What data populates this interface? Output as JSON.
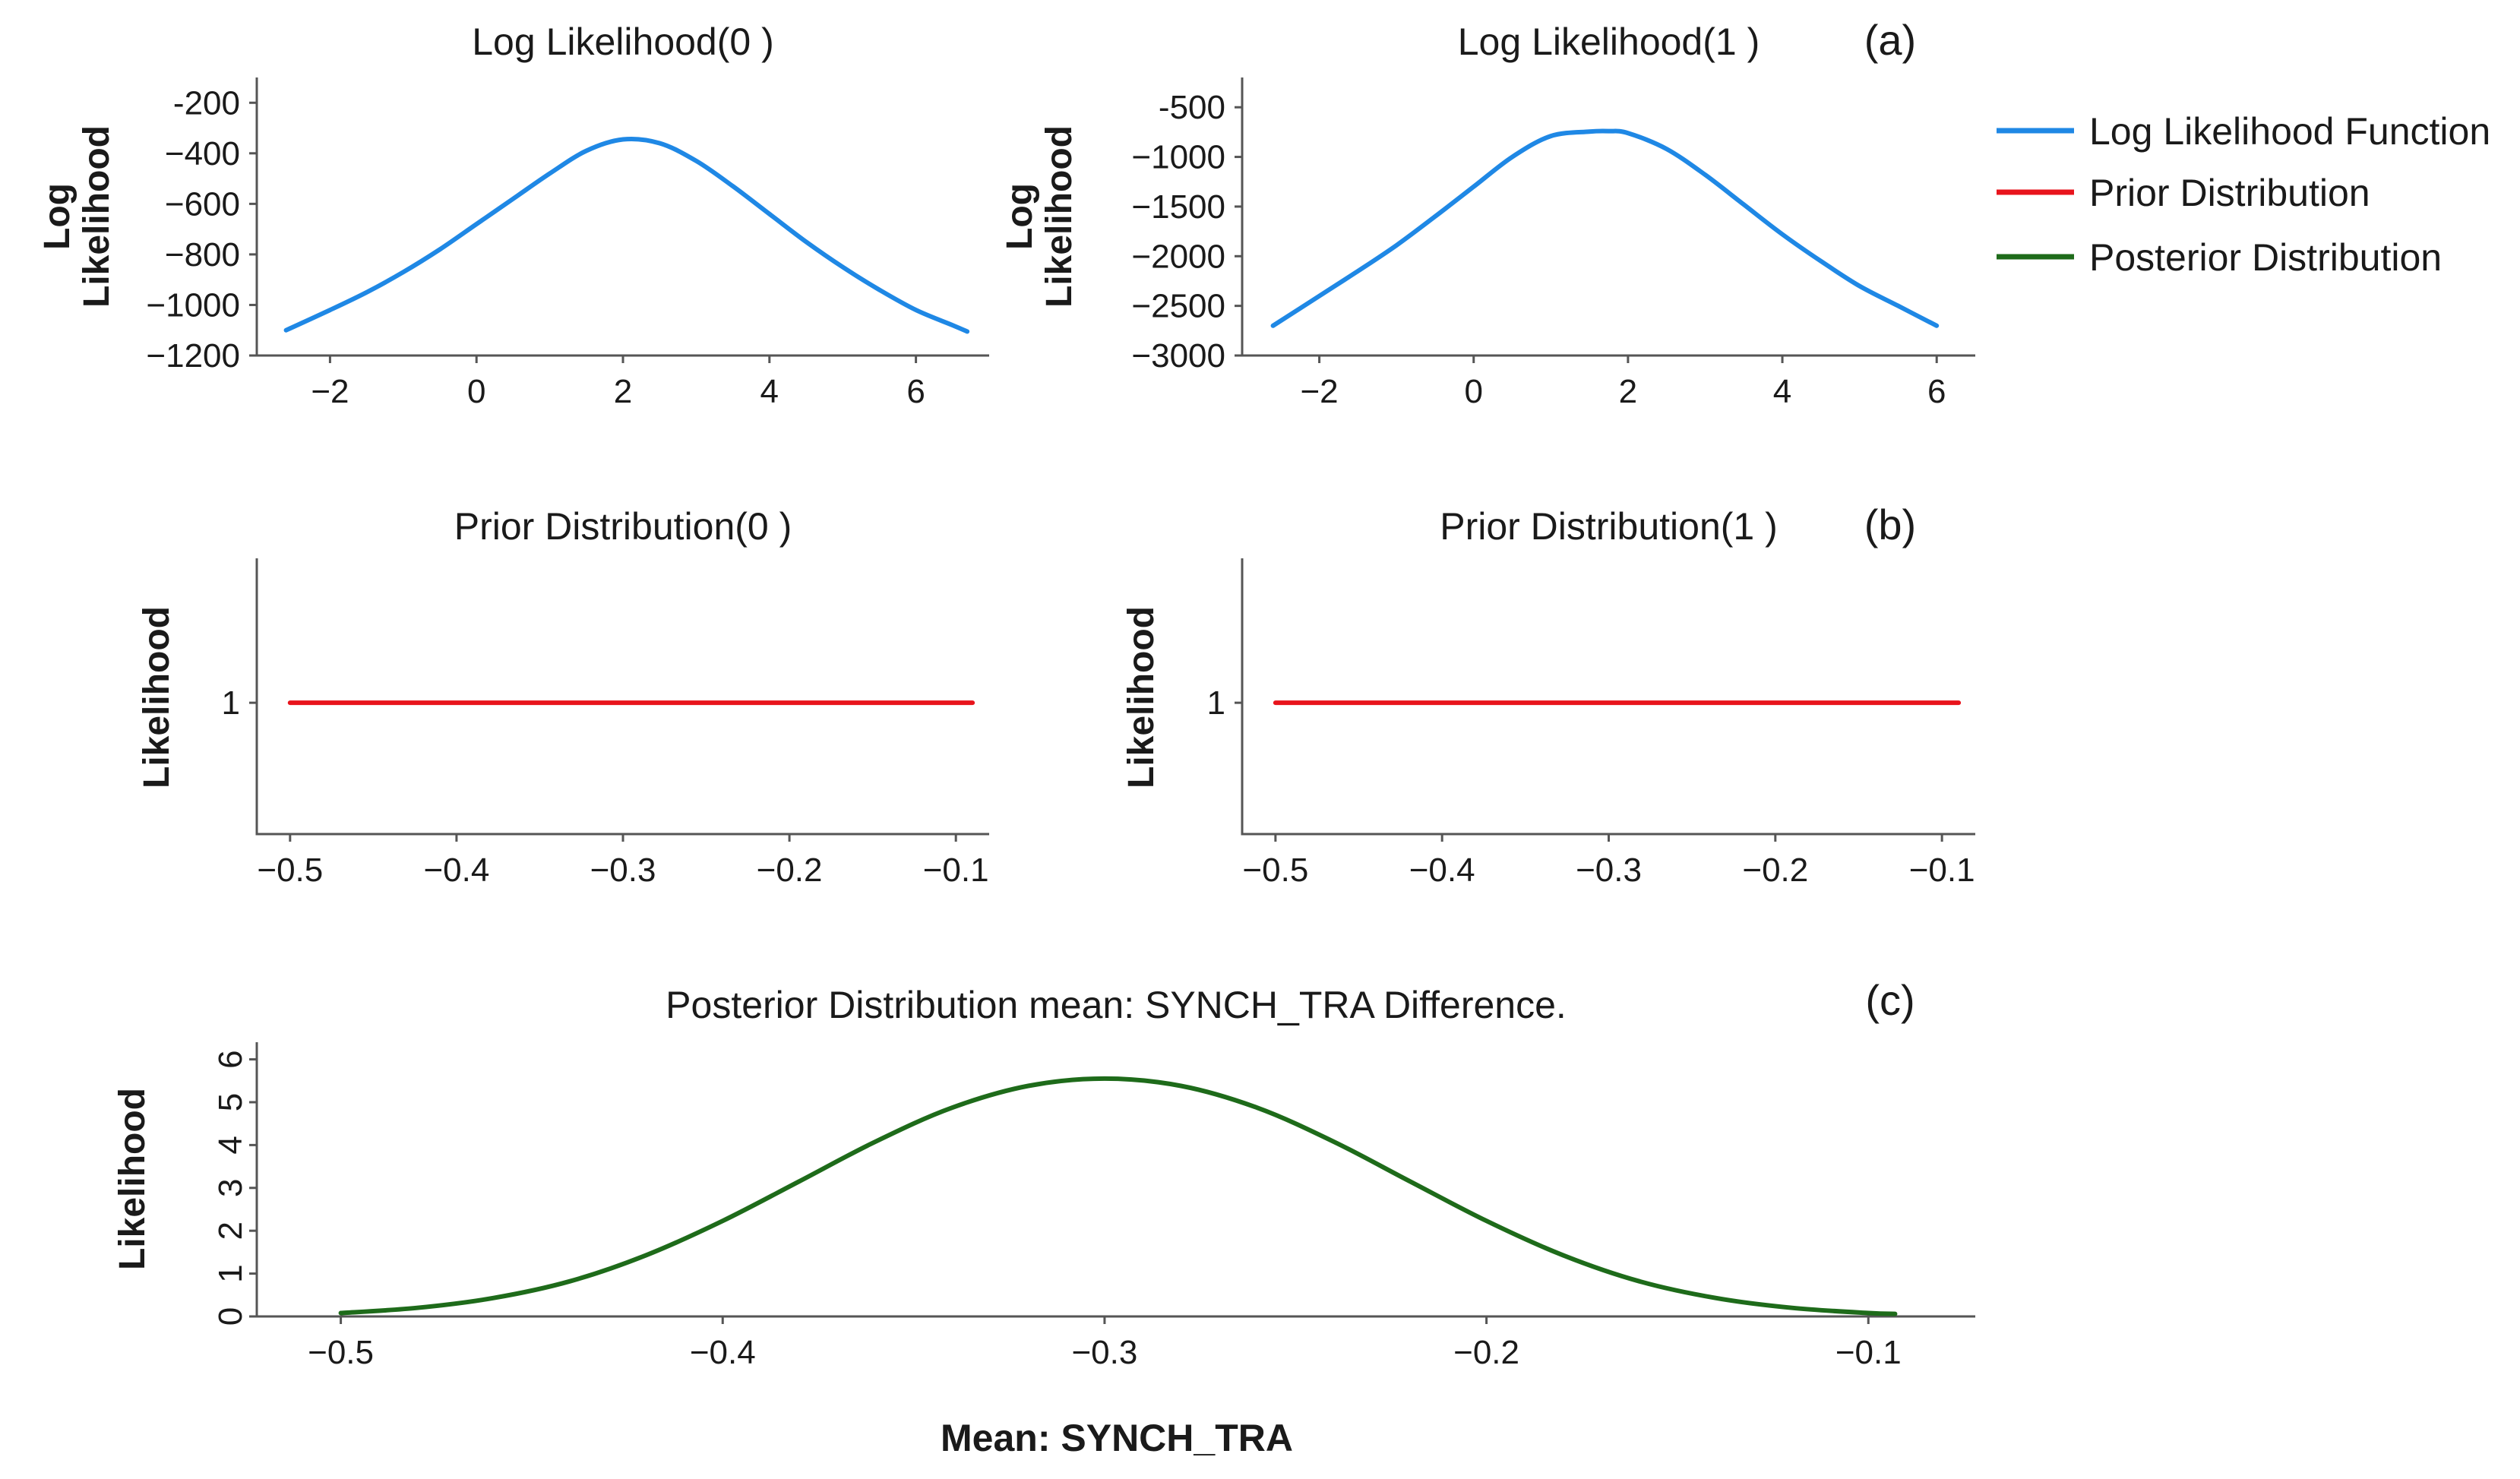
{
  "panel_labels": {
    "a": "(a)",
    "b": "(b)",
    "c": "(c)"
  },
  "legend": {
    "items": [
      {
        "label": "Log Likelihood Function",
        "color": "#1f88e5"
      },
      {
        "label": "Prior Distribution",
        "color": "#e8141c"
      },
      {
        "label": "Posterior Distribution",
        "color": "#1e6b1a"
      }
    ]
  },
  "xlabel_bottom": "Mean: SYNCH_TRA",
  "chart_data": [
    {
      "id": "loglik0",
      "type": "line",
      "title": "Log Likelihood(0 )",
      "ylabel_lines": [
        "Log",
        "Likelihood"
      ],
      "xlabel": "",
      "xlim": [
        -3.0,
        7.0
      ],
      "ylim": [
        -1200,
        -100
      ],
      "xticks": [
        -2,
        0,
        2,
        4,
        6
      ],
      "xtick_labels": [
        "−2",
        "0",
        "2",
        "4",
        "6"
      ],
      "yticks": [
        -200,
        -400,
        -600,
        -800,
        -1000,
        -1200
      ],
      "ytick_labels": [
        "-200",
        "−400",
        "−600",
        "−800",
        "−1000",
        "−1200"
      ],
      "color": "#1f88e5",
      "series": [
        {
          "name": "Log Likelihood Function",
          "x": [
            -2.6,
            -2.0,
            -1.5,
            -1.0,
            -0.5,
            0.0,
            0.5,
            1.0,
            1.5,
            2.0,
            2.5,
            3.0,
            3.5,
            4.0,
            4.5,
            5.0,
            5.5,
            6.0,
            6.5,
            6.7
          ],
          "y": [
            -1100,
            -1020,
            -950,
            -870,
            -780,
            -680,
            -580,
            -480,
            -390,
            -345,
            -360,
            -430,
            -530,
            -640,
            -750,
            -850,
            -940,
            -1020,
            -1080,
            -1105
          ]
        }
      ]
    },
    {
      "id": "loglik1",
      "type": "line",
      "title": "Log Likelihood(1 )",
      "ylabel_lines": [
        "Log",
        "Likelihood"
      ],
      "xlabel": "",
      "xlim": [
        -3.0,
        6.5
      ],
      "ylim": [
        -3000,
        -200
      ],
      "xticks": [
        -2,
        0,
        2,
        4,
        6
      ],
      "xtick_labels": [
        "−2",
        "0",
        "2",
        "4",
        "6"
      ],
      "yticks": [
        -500,
        -1000,
        -1500,
        -2000,
        -2500,
        -3000
      ],
      "ytick_labels": [
        "-500",
        "−1000",
        "−1500",
        "−2000",
        "−2500",
        "−3000"
      ],
      "color": "#1f88e5",
      "series": [
        {
          "name": "Log Likelihood Function",
          "x": [
            -2.6,
            -2.0,
            -1.5,
            -1.0,
            -0.5,
            0.0,
            0.5,
            1.0,
            1.5,
            1.75,
            2.0,
            2.5,
            3.0,
            3.5,
            4.0,
            4.5,
            5.0,
            5.5,
            6.0
          ],
          "y": [
            -2700,
            -2400,
            -2150,
            -1890,
            -1600,
            -1300,
            -1000,
            -790,
            -745,
            -740,
            -760,
            -920,
            -1180,
            -1480,
            -1780,
            -2050,
            -2300,
            -2500,
            -2700
          ]
        }
      ]
    },
    {
      "id": "prior0",
      "type": "line",
      "title": "Prior Distribution(0 )",
      "ylabel": "Likelihood",
      "xlabel": "",
      "xlim": [
        -0.52,
        -0.08
      ],
      "ylim": [
        0.5,
        1.55
      ],
      "xticks": [
        -0.5,
        -0.4,
        -0.3,
        -0.2,
        -0.1
      ],
      "xtick_labels": [
        "−0.5",
        "−0.4",
        "−0.3",
        "−0.2",
        "−0.1"
      ],
      "yticks": [
        1
      ],
      "ytick_labels": [
        "1"
      ],
      "color": "#e8141c",
      "series": [
        {
          "name": "Prior Distribution",
          "x": [
            -0.5,
            -0.09
          ],
          "y": [
            1,
            1
          ]
        }
      ]
    },
    {
      "id": "prior1",
      "type": "line",
      "title": "Prior Distribution(1 )",
      "ylabel": "Likelihood",
      "xlabel": "",
      "xlim": [
        -0.52,
        -0.08
      ],
      "ylim": [
        0.5,
        1.55
      ],
      "xticks": [
        -0.5,
        -0.4,
        -0.3,
        -0.2,
        -0.1
      ],
      "xtick_labels": [
        "−0.5",
        "−0.4",
        "−0.3",
        "−0.2",
        "−0.1"
      ],
      "yticks": [
        1
      ],
      "ytick_labels": [
        "1"
      ],
      "color": "#e8141c",
      "series": [
        {
          "name": "Prior Distribution",
          "x": [
            -0.5,
            -0.09
          ],
          "y": [
            1,
            1
          ]
        }
      ]
    },
    {
      "id": "posterior",
      "type": "line",
      "title": "Posterior Distribution mean: SYNCH_TRA Difference.",
      "ylabel": "Likelihood",
      "xlabel": "Mean: SYNCH_TRA",
      "xlim": [
        -0.522,
        -0.072
      ],
      "ylim": [
        0,
        6.4
      ],
      "xticks": [
        -0.5,
        -0.4,
        -0.3,
        -0.2,
        -0.1
      ],
      "xtick_labels": [
        "−0.5",
        "−0.4",
        "−0.3",
        "−0.2",
        "−0.1"
      ],
      "yticks": [
        0,
        1,
        2,
        3,
        4,
        5,
        6
      ],
      "ytick_labels": [
        "0",
        "1",
        "2",
        "3",
        "4",
        "5",
        "6"
      ],
      "color": "#1e6b1a",
      "series": [
        {
          "name": "Posterior Distribution",
          "x": [
            -0.5,
            -0.48,
            -0.46,
            -0.44,
            -0.42,
            -0.4,
            -0.38,
            -0.36,
            -0.34,
            -0.32,
            -0.3,
            -0.28,
            -0.26,
            -0.24,
            -0.22,
            -0.2,
            -0.18,
            -0.16,
            -0.14,
            -0.12,
            -0.1,
            -0.093
          ],
          "y": [
            0.08,
            0.2,
            0.43,
            0.82,
            1.43,
            2.23,
            3.15,
            4.08,
            4.87,
            5.38,
            5.55,
            5.38,
            4.87,
            4.08,
            3.15,
            2.23,
            1.43,
            0.82,
            0.43,
            0.2,
            0.08,
            0.06
          ]
        }
      ]
    }
  ]
}
